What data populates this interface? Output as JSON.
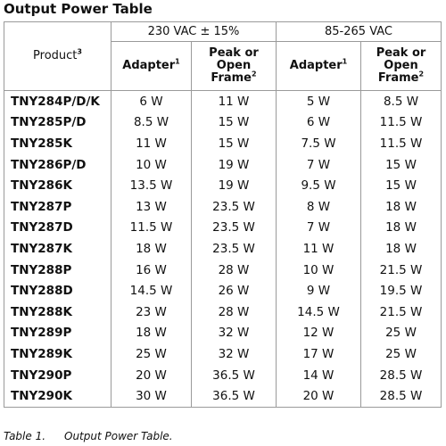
{
  "title": "Output Power Table",
  "header": {
    "product": "Product",
    "product_note": "3",
    "group_230": "230 VAC ± 15%",
    "group_85": "85-265 VAC",
    "adapter": "Adapter",
    "adapter_note": "1",
    "peak_line1": "Peak or",
    "peak_line2": "Open",
    "peak_line3": "Frame",
    "peak_note": "2"
  },
  "rows": [
    {
      "product": "TNY284P/D/K",
      "a230": "6 W",
      "p230": "11 W",
      "a85": "5 W",
      "p85": "8.5 W"
    },
    {
      "product": "TNY285P/D",
      "a230": "8.5 W",
      "p230": "15 W",
      "a85": "6 W",
      "p85": "11.5 W"
    },
    {
      "product": "TNY285K",
      "a230": "11 W",
      "p230": "15 W",
      "a85": "7.5 W",
      "p85": "11.5 W"
    },
    {
      "product": "TNY286P/D",
      "a230": "10 W",
      "p230": "19 W",
      "a85": "7 W",
      "p85": "15 W"
    },
    {
      "product": "TNY286K",
      "a230": "13.5 W",
      "p230": "19 W",
      "a85": "9.5 W",
      "p85": "15 W"
    },
    {
      "product": "TNY287P",
      "a230": "13 W",
      "p230": "23.5 W",
      "a85": "8 W",
      "p85": "18 W"
    },
    {
      "product": "TNY287D",
      "a230": "11.5 W",
      "p230": "23.5 W",
      "a85": "7 W",
      "p85": "18 W"
    },
    {
      "product": "TNY287K",
      "a230": "18 W",
      "p230": "23.5 W",
      "a85": "11 W",
      "p85": "18 W"
    },
    {
      "product": "TNY288P",
      "a230": "16 W",
      "p230": "28 W",
      "a85": "10 W",
      "p85": "21.5 W"
    },
    {
      "product": "TNY288D",
      "a230": "14.5 W",
      "p230": "26 W",
      "a85": "9 W",
      "p85": "19.5 W"
    },
    {
      "product": "TNY288K",
      "a230": "23 W",
      "p230": "28 W",
      "a85": "14.5 W",
      "p85": "21.5 W"
    },
    {
      "product": "TNY289P",
      "a230": "18 W",
      "p230": "32 W",
      "a85": "12 W",
      "p85": "25 W"
    },
    {
      "product": "TNY289K",
      "a230": "25 W",
      "p230": "32 W",
      "a85": "17 W",
      "p85": "25 W"
    },
    {
      "product": "TNY290P",
      "a230": "20 W",
      "p230": "36.5 W",
      "a85": "14 W",
      "p85": "28.5 W"
    },
    {
      "product": "TNY290K",
      "a230": "30 W",
      "p230": "36.5 W",
      "a85": "20 W",
      "p85": "28.5 W"
    }
  ],
  "caption": {
    "number": "Table 1.",
    "text": "Output Power Table."
  }
}
